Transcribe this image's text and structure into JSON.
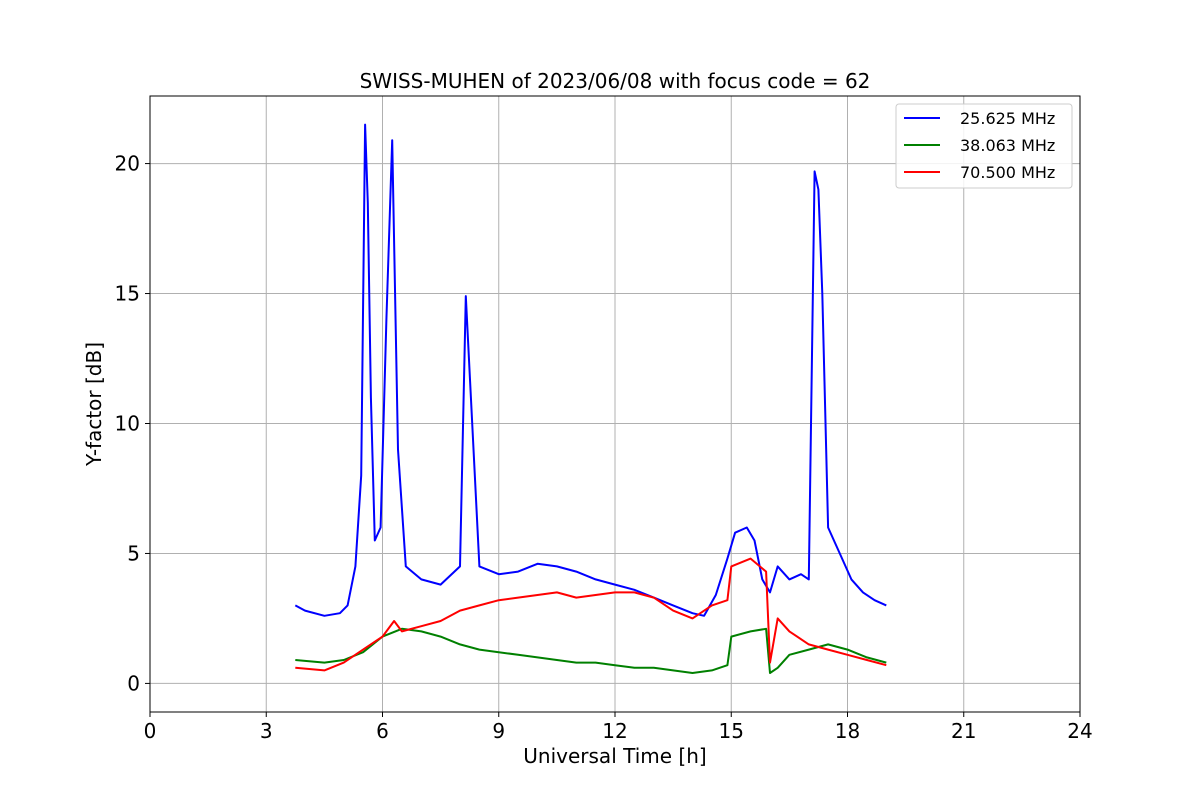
{
  "chart_data": {
    "type": "line",
    "title": "SWISS-MUHEN of 2023/06/08 with focus code = 62",
    "xlabel": "Universal Time [h]",
    "ylabel": "Y-factor [dB]",
    "xlim": [
      0,
      24
    ],
    "ylim": [
      -1.1,
      22.6
    ],
    "xticks": [
      0,
      3,
      6,
      9,
      12,
      15,
      18,
      21,
      24
    ],
    "yticks": [
      0,
      5,
      10,
      15,
      20
    ],
    "xtick_labels": [
      "0",
      "3",
      "6",
      "9",
      "12",
      "15",
      "18",
      "21",
      "24"
    ],
    "ytick_labels": [
      "0",
      "5",
      "10",
      "15",
      "20"
    ],
    "grid": true,
    "legend_position": "top-right",
    "series": [
      {
        "name": "25.625 MHz",
        "color": "#0000ff",
        "x": [
          3.75,
          4.0,
          4.5,
          4.9,
          5.1,
          5.3,
          5.45,
          5.55,
          5.62,
          5.7,
          5.8,
          5.95,
          6.1,
          6.25,
          6.4,
          6.6,
          7.0,
          7.5,
          8.0,
          8.15,
          8.5,
          9.0,
          9.5,
          10.0,
          10.5,
          11.0,
          11.5,
          12.0,
          12.5,
          13.0,
          13.5,
          14.0,
          14.3,
          14.6,
          14.9,
          15.1,
          15.4,
          15.6,
          15.8,
          16.0,
          16.2,
          16.5,
          16.8,
          17.0,
          17.15,
          17.25,
          17.35,
          17.5,
          17.8,
          18.1,
          18.4,
          18.7,
          19.0
        ],
        "y": [
          3.0,
          2.8,
          2.6,
          2.7,
          3.0,
          4.5,
          8.0,
          21.5,
          18.5,
          11.0,
          5.5,
          6.0,
          14.0,
          20.9,
          9.0,
          4.5,
          4.0,
          3.8,
          4.5,
          14.9,
          4.5,
          4.2,
          4.3,
          4.6,
          4.5,
          4.3,
          4.0,
          3.8,
          3.6,
          3.3,
          3.0,
          2.7,
          2.6,
          3.4,
          4.8,
          5.8,
          6.0,
          5.5,
          4.0,
          3.5,
          4.5,
          4.0,
          4.2,
          4.0,
          19.7,
          19.0,
          15.0,
          6.0,
          5.0,
          4.0,
          3.5,
          3.2,
          3.0
        ]
      },
      {
        "name": "38.063 MHz",
        "color": "#008000",
        "x": [
          3.75,
          4.5,
          5.0,
          5.5,
          6.0,
          6.5,
          7.0,
          7.5,
          8.0,
          8.5,
          9.0,
          9.5,
          10.0,
          10.5,
          11.0,
          11.5,
          12.0,
          12.5,
          13.0,
          13.5,
          14.0,
          14.5,
          14.9,
          15.0,
          15.5,
          15.9,
          16.0,
          16.2,
          16.5,
          17.0,
          17.5,
          18.0,
          18.5,
          19.0
        ],
        "y": [
          0.9,
          0.8,
          0.9,
          1.2,
          1.8,
          2.1,
          2.0,
          1.8,
          1.5,
          1.3,
          1.2,
          1.1,
          1.0,
          0.9,
          0.8,
          0.8,
          0.7,
          0.6,
          0.6,
          0.5,
          0.4,
          0.5,
          0.7,
          1.8,
          2.0,
          2.1,
          0.4,
          0.6,
          1.1,
          1.3,
          1.5,
          1.3,
          1.0,
          0.8
        ]
      },
      {
        "name": "70.500 MHz",
        "color": "#ff0000",
        "x": [
          3.75,
          4.5,
          5.0,
          5.5,
          6.0,
          6.3,
          6.5,
          7.0,
          7.5,
          8.0,
          8.5,
          9.0,
          9.5,
          10.0,
          10.5,
          11.0,
          11.5,
          12.0,
          12.5,
          13.0,
          13.5,
          14.0,
          14.5,
          14.9,
          15.0,
          15.5,
          15.9,
          16.0,
          16.2,
          16.5,
          17.0,
          17.5,
          18.0,
          18.5,
          19.0
        ],
        "y": [
          0.6,
          0.5,
          0.8,
          1.3,
          1.8,
          2.4,
          2.0,
          2.2,
          2.4,
          2.8,
          3.0,
          3.2,
          3.3,
          3.4,
          3.5,
          3.3,
          3.4,
          3.5,
          3.5,
          3.3,
          2.8,
          2.5,
          3.0,
          3.2,
          4.5,
          4.8,
          4.3,
          0.8,
          2.5,
          2.0,
          1.5,
          1.3,
          1.1,
          0.9,
          0.7
        ]
      }
    ]
  }
}
